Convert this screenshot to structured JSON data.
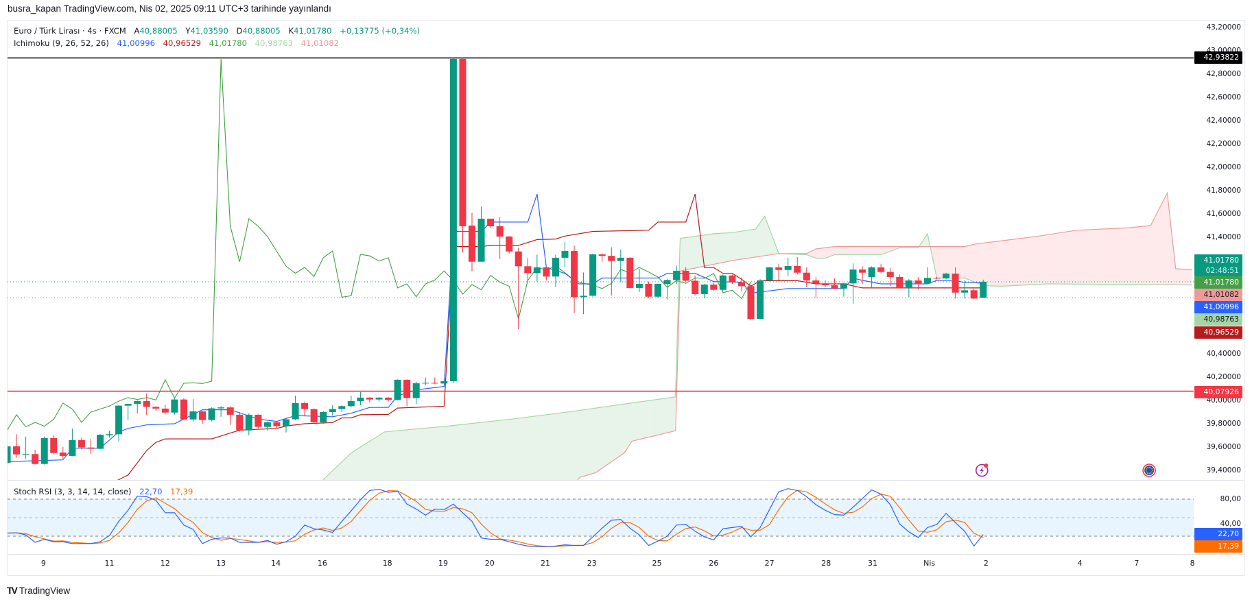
{
  "published_line": "busra_kapan TradingView.com, Nis 02, 2025 09:11 UTC+3 tarihinde yayınlandı",
  "legend": {
    "symbol": "Euro / Türk Lirası · 4s · FXCM",
    "open_label": "A",
    "open": "40,88005",
    "high_label": "Y",
    "high": "41,03590",
    "low_label": "D",
    "low": "40,88005",
    "close_label": "K",
    "close": "41,01780",
    "change": "+0,13775 (+0,34%)"
  },
  "ichimoku_legend": {
    "label": "Ichimoku (9, 26, 52, 26)",
    "tenkan": "41,00996",
    "kijun": "40,96529",
    "chikou": "41,01780",
    "span_a": "40,98763",
    "span_b": "41,01082"
  },
  "stoch_legend": {
    "label": "Stoch RSI (3, 3, 14, 14, close)",
    "k": "22,70",
    "d": "17,39"
  },
  "colors": {
    "up": "#089981",
    "down": "#f23645",
    "tenkan": "#2962ff",
    "kijun": "#b71c1c",
    "chikou": "#43a047",
    "span_a": "#a5d6a7",
    "span_b": "#ef9a9a",
    "stoch_k": "#2962ff",
    "stoch_d": "#ff6d00"
  },
  "price_axis": {
    "ticks": [
      "43,20000",
      "43,00000",
      "42,80000",
      "42,60000",
      "42,40000",
      "42,20000",
      "42,00000",
      "41,80000",
      "41,60000",
      "41,40000",
      "40,40000",
      "40,20000",
      "40,00000",
      "39,80000",
      "39,60000",
      "39,40000"
    ],
    "labels": {
      "resistance": "42,93822",
      "last_price": "41,01780",
      "countdown": "02:48:51",
      "chikou": "41,01780",
      "span_b": "41,01082",
      "tenkan": "41,00996",
      "span_a": "40,98763",
      "kijun": "40,96529",
      "support": "40,07926"
    }
  },
  "stoch_axis": {
    "ticks": [
      "80,00",
      "40,00"
    ],
    "k_label": "22,70",
    "d_label": "17,39"
  },
  "time_axis": [
    {
      "label": "9",
      "bar": 4.9
    },
    {
      "label": "11",
      "bar": 12
    },
    {
      "label": "12",
      "bar": 18
    },
    {
      "label": "13",
      "bar": 24
    },
    {
      "label": "14",
      "bar": 29.9
    },
    {
      "label": "16",
      "bar": 34.9
    },
    {
      "label": "18",
      "bar": 41.9
    },
    {
      "label": "19",
      "bar": 47.9
    },
    {
      "label": "20",
      "bar": 52.9
    },
    {
      "label": "21",
      "bar": 58.9
    },
    {
      "label": "23",
      "bar": 63.9
    },
    {
      "label": "25",
      "bar": 70.9
    },
    {
      "label": "26",
      "bar": 77
    },
    {
      "label": "27",
      "bar": 83
    },
    {
      "label": "28",
      "bar": 89.1
    },
    {
      "label": "31",
      "bar": 94.1
    },
    {
      "label": "Nis",
      "bar": 100.2
    },
    {
      "label": "2",
      "bar": 106.3
    },
    {
      "label": "4",
      "bar": 116.4
    },
    {
      "label": "7",
      "bar": 122.5
    },
    {
      "label": "8",
      "bar": 128.5
    }
  ],
  "events": [
    {
      "type": "economic-event-lightning",
      "bar": 106
    },
    {
      "type": "eu-flag-event",
      "bar": 124
    }
  ],
  "brand": "TradingView",
  "chart_data": {
    "type": "candlestick",
    "title": "Euro / Türk Lirası · 4s · FXCM",
    "ylim": [
      39.32,
      43.2
    ],
    "stoch_ylim": [
      0,
      100
    ],
    "horizontal_lines": {
      "resistance": 42.93822,
      "support": 40.07926,
      "last_price": 41.0178,
      "open_line": 40.88005
    },
    "ohlc": [
      [
        39.465,
        39.62,
        39.44,
        39.606
      ],
      [
        39.606,
        39.71,
        39.508,
        39.537
      ],
      [
        39.54,
        39.69,
        39.5,
        39.54
      ],
      [
        39.54,
        39.577,
        39.45,
        39.455
      ],
      [
        39.455,
        39.69,
        39.45,
        39.677
      ],
      [
        39.677,
        39.7,
        39.54,
        39.549
      ],
      [
        39.553,
        39.6,
        39.5,
        39.524
      ],
      [
        39.524,
        39.759,
        39.52,
        39.659
      ],
      [
        39.659,
        39.68,
        39.58,
        39.596
      ],
      [
        39.596,
        39.67,
        39.54,
        39.585
      ],
      [
        39.585,
        39.71,
        39.58,
        39.706
      ],
      [
        39.7,
        39.74,
        39.68,
        39.71
      ],
      [
        39.71,
        39.96,
        39.65,
        39.955
      ],
      [
        39.955,
        39.97,
        39.83,
        39.97
      ],
      [
        39.97,
        40.0,
        39.89,
        39.994
      ],
      [
        39.994,
        40.06,
        39.873,
        39.945
      ],
      [
        39.945,
        39.95,
        39.91,
        39.93
      ],
      [
        39.93,
        39.96,
        39.88,
        39.896
      ],
      [
        39.896,
        40.02,
        39.88,
        40.008
      ],
      [
        40.008,
        40.02,
        39.83,
        39.837
      ],
      [
        39.837,
        40.01,
        39.82,
        39.906
      ],
      [
        39.906,
        39.91,
        39.8,
        39.832
      ],
      [
        39.832,
        39.94,
        39.82,
        39.932
      ],
      [
        39.932,
        39.95,
        39.86,
        39.94
      ],
      [
        39.94,
        39.95,
        39.79,
        39.877
      ],
      [
        39.877,
        39.9,
        39.73,
        39.743
      ],
      [
        39.743,
        39.89,
        39.7,
        39.877
      ],
      [
        39.877,
        39.88,
        39.76,
        39.773
      ],
      [
        39.773,
        39.82,
        39.74,
        39.812
      ],
      [
        39.812,
        39.82,
        39.76,
        39.779
      ],
      [
        39.779,
        39.84,
        39.726,
        39.838
      ],
      [
        39.838,
        40.04,
        39.83,
        39.977
      ],
      [
        39.977,
        39.99,
        39.87,
        39.926
      ],
      [
        39.926,
        39.93,
        39.8,
        39.812
      ],
      [
        39.812,
        39.91,
        39.8,
        39.9
      ],
      [
        39.9,
        39.96,
        39.87,
        39.926
      ],
      [
        39.926,
        39.96,
        39.9,
        39.951
      ],
      [
        39.951,
        40.04,
        39.94,
        39.994
      ],
      [
        39.994,
        40.072,
        39.96,
        40.024
      ],
      [
        40.024,
        40.03,
        39.98,
        40.008
      ],
      [
        40.008,
        40.03,
        39.99,
        40.024
      ],
      [
        40.024,
        40.03,
        39.99,
        40.004
      ],
      [
        40.004,
        40.18,
        40.0,
        40.177
      ],
      [
        40.177,
        40.18,
        39.95,
        40.02
      ],
      [
        40.02,
        40.16,
        39.97,
        40.147
      ],
      [
        40.147,
        40.196,
        40.13,
        40.151
      ],
      [
        40.151,
        40.196,
        40.14,
        40.145
      ],
      [
        40.145,
        40.18,
        40.14,
        40.165
      ],
      [
        40.165,
        42.938,
        40.15,
        42.93
      ],
      [
        42.93,
        42.938,
        41.269,
        41.494
      ],
      [
        41.5,
        41.61,
        41.11,
        41.19
      ],
      [
        41.19,
        41.665,
        41.19,
        41.559
      ],
      [
        41.559,
        41.56,
        41.48,
        41.494
      ],
      [
        41.494,
        41.57,
        41.214,
        41.406
      ],
      [
        41.406,
        41.41,
        41.26,
        41.278
      ],
      [
        41.278,
        41.31,
        40.61,
        41.151
      ],
      [
        41.151,
        41.22,
        41.02,
        41.092
      ],
      [
        41.092,
        41.25,
        41.02,
        41.141
      ],
      [
        41.141,
        41.14,
        41.03,
        41.063
      ],
      [
        41.063,
        41.25,
        40.975,
        41.224
      ],
      [
        41.224,
        41.36,
        41.145,
        41.282
      ],
      [
        41.282,
        41.327,
        40.75,
        40.886
      ],
      [
        40.886,
        41.097,
        40.74,
        40.898
      ],
      [
        40.898,
        41.26,
        40.89,
        41.253
      ],
      [
        41.253,
        41.26,
        41.19,
        41.24
      ],
      [
        41.24,
        41.314,
        40.9,
        41.196
      ],
      [
        41.196,
        41.294,
        41.014,
        41.224
      ],
      [
        41.224,
        41.23,
        40.96,
        40.965
      ],
      [
        40.965,
        41.131,
        40.93,
        41.0
      ],
      [
        41.0,
        41.02,
        40.88,
        40.89
      ],
      [
        40.89,
        41.0,
        40.88,
        41.0
      ],
      [
        41.0,
        41.04,
        40.867,
        41.033
      ],
      [
        41.033,
        41.157,
        41.0,
        41.112
      ],
      [
        41.112,
        41.141,
        41.02,
        41.027
      ],
      [
        41.027,
        41.072,
        40.9,
        40.912
      ],
      [
        40.912,
        41.0,
        40.876,
        40.994
      ],
      [
        40.994,
        41.01,
        40.94,
        40.949
      ],
      [
        40.949,
        41.08,
        40.94,
        41.072
      ],
      [
        41.072,
        41.08,
        41.0,
        41.014
      ],
      [
        41.014,
        41.053,
        40.935,
        40.98
      ],
      [
        40.98,
        40.99,
        40.69,
        40.7
      ],
      [
        40.7,
        41.04,
        40.7,
        41.029
      ],
      [
        41.029,
        41.145,
        41.02,
        41.141
      ],
      [
        41.141,
        41.17,
        41.03,
        41.119
      ],
      [
        41.119,
        41.224,
        41.067,
        41.153
      ],
      [
        41.153,
        41.23,
        41.08,
        41.096
      ],
      [
        41.096,
        41.141,
        40.97,
        41.029
      ],
      [
        41.029,
        41.06,
        40.876,
        41.004
      ],
      [
        41.004,
        41.03,
        40.97,
        40.988
      ],
      [
        40.988,
        41.047,
        40.955,
        40.96
      ],
      [
        40.96,
        41.01,
        40.89,
        41.004
      ],
      [
        41.004,
        41.176,
        40.83,
        41.123
      ],
      [
        41.123,
        41.15,
        41.0,
        41.096
      ],
      [
        41.059,
        41.15,
        40.97,
        41.141
      ],
      [
        41.141,
        41.17,
        41.09,
        41.102
      ],
      [
        41.102,
        41.135,
        40.98,
        41.059
      ],
      [
        41.059,
        41.08,
        40.96,
        40.97
      ],
      [
        40.97,
        41.04,
        40.886,
        41.029
      ],
      [
        41.029,
        41.06,
        40.95,
        41.004
      ],
      [
        41.004,
        41.141,
        41.0,
        41.051
      ],
      [
        41.051,
        41.06,
        41.04,
        41.047
      ],
      [
        41.047,
        41.096,
        41.04,
        41.088
      ],
      [
        41.088,
        41.141,
        40.874,
        40.925
      ],
      [
        40.925,
        41.03,
        40.874,
        40.945
      ],
      [
        40.945,
        40.96,
        40.87,
        40.874
      ],
      [
        40.88005,
        41.0359,
        40.88005,
        41.0178
      ]
    ],
    "chikou_offset": 25,
    "tenkan": [
      [
        1,
        39.475
      ],
      [
        7,
        39.49
      ],
      [
        8,
        39.59
      ],
      [
        11,
        39.59
      ],
      [
        13,
        39.73
      ],
      [
        14,
        39.76
      ],
      [
        16,
        39.79
      ],
      [
        19,
        39.8
      ],
      [
        22,
        39.92
      ],
      [
        25,
        39.92
      ],
      [
        28,
        39.84
      ],
      [
        30,
        39.82
      ],
      [
        32,
        39.87
      ],
      [
        36,
        39.86
      ],
      [
        38,
        39.89
      ],
      [
        40,
        39.94
      ],
      [
        42,
        39.94
      ],
      [
        43,
        40.04
      ],
      [
        45,
        40.09
      ],
      [
        48,
        40.12
      ],
      [
        49,
        41.45
      ],
      [
        52,
        41.45
      ],
      [
        53,
        41.53
      ],
      [
        57,
        41.53
      ],
      [
        58,
        41.77
      ],
      [
        59,
        41.14
      ],
      [
        61,
        41.09
      ],
      [
        62.5,
        41.0
      ],
      [
        64,
        41.0
      ],
      [
        65,
        41.05
      ],
      [
        71,
        41.05
      ],
      [
        72,
        41.09
      ],
      [
        75,
        41.09
      ],
      [
        77,
        41.02
      ],
      [
        80,
        41.014
      ],
      [
        81,
        40.92
      ],
      [
        83,
        40.94
      ],
      [
        85,
        40.96
      ],
      [
        91,
        40.96
      ],
      [
        92,
        41.05
      ],
      [
        93,
        41.03
      ],
      [
        95,
        41.0
      ],
      [
        100,
        41.0
      ],
      [
        101,
        41.03
      ],
      [
        103,
        41.03
      ],
      [
        104,
        41.01
      ],
      [
        106,
        41.00996
      ]
    ],
    "kijun": [
      [
        10,
        39.2
      ],
      [
        13,
        39.32
      ],
      [
        14,
        39.36
      ],
      [
        16,
        39.57
      ],
      [
        17,
        39.64
      ],
      [
        18,
        39.67
      ],
      [
        23,
        39.67
      ],
      [
        25,
        39.72
      ],
      [
        26,
        39.745
      ],
      [
        30,
        39.76
      ],
      [
        31,
        39.78
      ],
      [
        33,
        39.8
      ],
      [
        36,
        39.81
      ],
      [
        37,
        39.85
      ],
      [
        38,
        39.85
      ],
      [
        39,
        39.877
      ],
      [
        42,
        39.88
      ],
      [
        43,
        39.935
      ],
      [
        48,
        39.95
      ],
      [
        49,
        41.32
      ],
      [
        52,
        41.32
      ],
      [
        53,
        41.33
      ],
      [
        56,
        41.33
      ],
      [
        58,
        41.38
      ],
      [
        60,
        41.385
      ],
      [
        61,
        41.41
      ],
      [
        64,
        41.45
      ],
      [
        70,
        41.46
      ],
      [
        71,
        41.53
      ],
      [
        74,
        41.53
      ],
      [
        75,
        41.77
      ],
      [
        76,
        41.14
      ],
      [
        77,
        41.14
      ],
      [
        78,
        41.09
      ],
      [
        79,
        41.09
      ],
      [
        80,
        41.04
      ],
      [
        81,
        40.98
      ],
      [
        82,
        41.027
      ],
      [
        86,
        41.027
      ],
      [
        88,
        41.0
      ],
      [
        91,
        41.0
      ],
      [
        93,
        40.965
      ],
      [
        106,
        40.96529
      ]
    ],
    "span_a": [
      [
        33,
        39.1
      ],
      [
        35,
        39.32
      ],
      [
        38,
        39.55
      ],
      [
        41.6,
        39.73
      ],
      [
        48.4,
        39.78
      ],
      [
        55.3,
        39.84
      ],
      [
        62.2,
        39.91
      ],
      [
        67.4,
        39.97
      ],
      [
        72.9,
        40.03
      ],
      [
        73.4,
        41.39
      ],
      [
        77,
        41.43
      ],
      [
        79,
        41.44
      ],
      [
        81.5,
        41.47
      ],
      [
        82.5,
        41.58
      ],
      [
        84,
        41.26
      ],
      [
        87,
        41.25
      ],
      [
        88,
        41.22
      ],
      [
        89,
        41.22
      ],
      [
        90,
        41.25
      ],
      [
        95,
        41.25
      ],
      [
        97,
        41.31
      ],
      [
        99,
        41.31
      ],
      [
        100,
        41.43
      ],
      [
        101,
        41.05
      ],
      [
        104,
        41.05
      ],
      [
        106,
        40.985
      ],
      [
        108,
        40.98
      ],
      [
        113,
        41.0
      ],
      [
        128.5,
        40.99
      ]
    ],
    "span_b": [
      [
        60,
        39.1
      ],
      [
        62.6,
        39.34
      ],
      [
        64.3,
        39.38
      ],
      [
        67.4,
        39.55
      ],
      [
        68.2,
        39.65
      ],
      [
        72.9,
        39.74
      ],
      [
        73.4,
        41.11
      ],
      [
        79,
        41.2
      ],
      [
        84,
        41.26
      ],
      [
        87,
        41.26
      ],
      [
        88,
        41.3
      ],
      [
        90,
        41.32
      ],
      [
        104,
        41.32
      ],
      [
        105,
        41.34
      ],
      [
        108,
        41.37
      ],
      [
        112,
        41.41
      ],
      [
        116,
        41.46
      ],
      [
        121.5,
        41.48
      ],
      [
        124,
        41.5
      ],
      [
        125.8,
        41.78
      ],
      [
        126.7,
        41.13
      ],
      [
        128.5,
        41.12
      ]
    ],
    "stoch_k": [
      25,
      25.5,
      22,
      10,
      15,
      11,
      11,
      8,
      8,
      8,
      11,
      21,
      44,
      62,
      85,
      84,
      78,
      58,
      58,
      38,
      31,
      8,
      15,
      17,
      17,
      10,
      10,
      10,
      13,
      7,
      11,
      20,
      38,
      32,
      30,
      26,
      44,
      61,
      79,
      94,
      96,
      91,
      93,
      72,
      64,
      54,
      64,
      63,
      72,
      58,
      44,
      17,
      15,
      15,
      11,
      7,
      4,
      3,
      3,
      4,
      6,
      5,
      5,
      19,
      33,
      46,
      47,
      33,
      22,
      5,
      12,
      20,
      38,
      39,
      28,
      19,
      14,
      32,
      34,
      36,
      19,
      34,
      63,
      92,
      97,
      94,
      84,
      71,
      62,
      55,
      54,
      67,
      81,
      95,
      88,
      71,
      40,
      27,
      18,
      34,
      39,
      57,
      42,
      28,
      4,
      22.7
    ],
    "stoch_bands": {
      "upper": 80,
      "middle": 50,
      "lower": 20
    }
  }
}
